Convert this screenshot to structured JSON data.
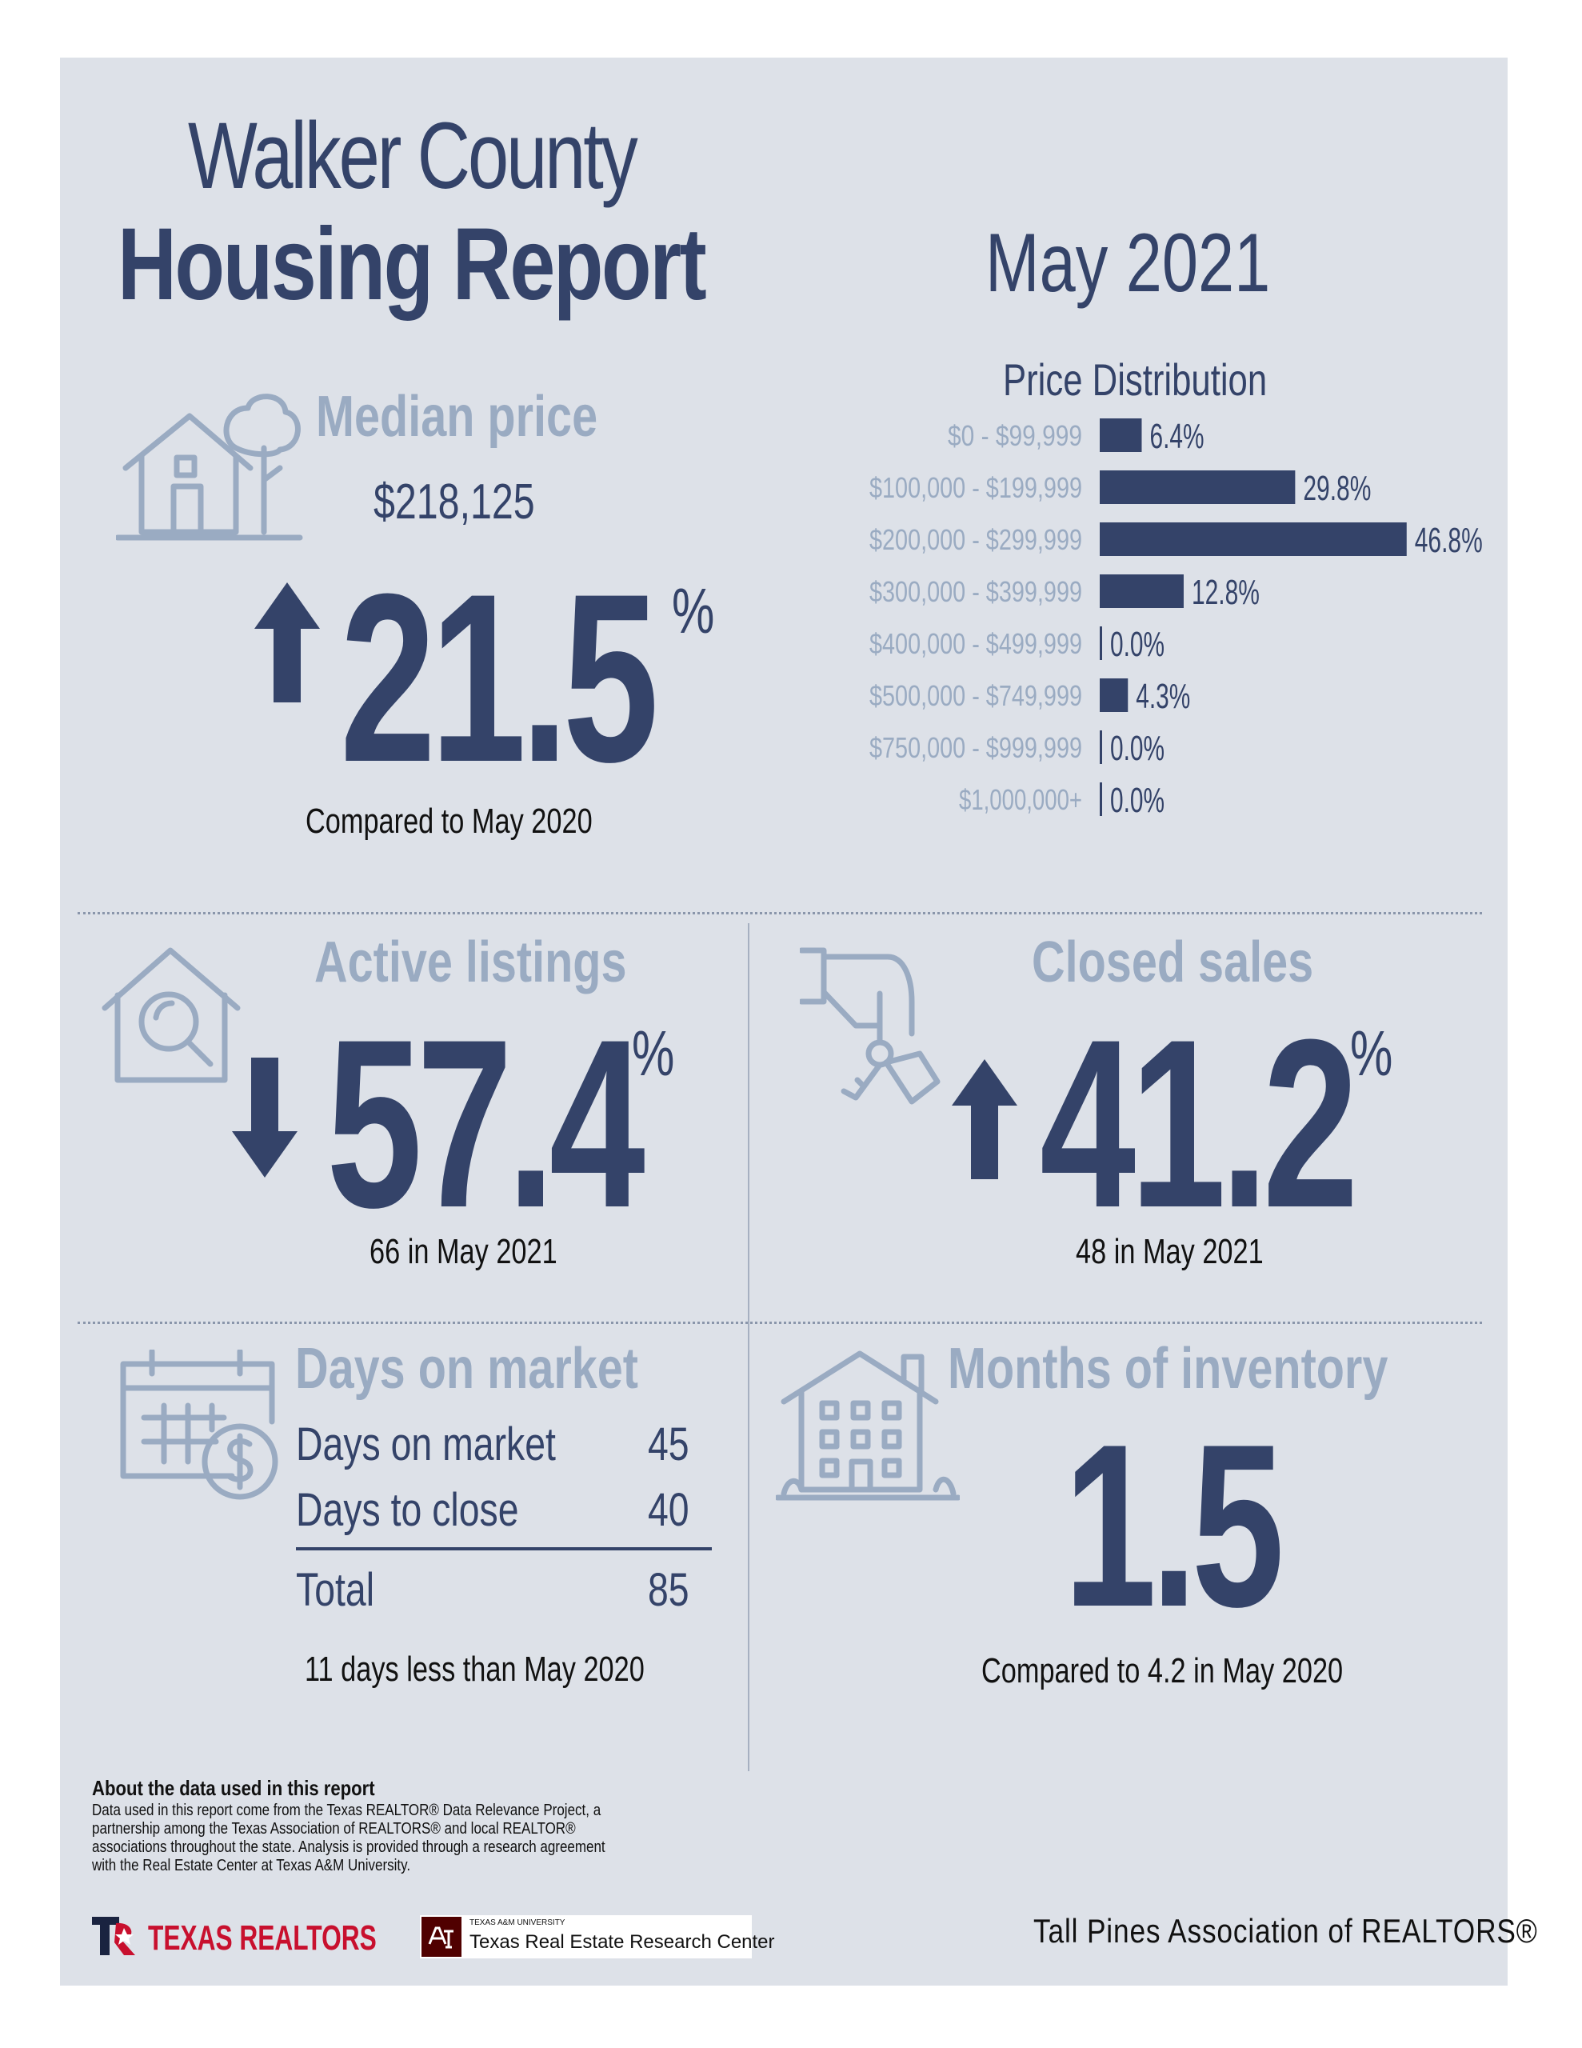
{
  "header": {
    "title_line1": "Walker County",
    "title_line2": "Housing Report",
    "month": "May 2021"
  },
  "median": {
    "label": "Median price",
    "value": "$218,125",
    "change": "21.5",
    "pct": "%",
    "direction": "up",
    "note": "Compared to May 2020"
  },
  "active": {
    "label": "Active listings",
    "change": "57.4",
    "pct": "%",
    "direction": "down",
    "note": "66 in May 2021"
  },
  "closed": {
    "label": "Closed sales",
    "change": "41.2",
    "pct": "%",
    "direction": "up",
    "note": "48 in May 2021"
  },
  "dom": {
    "label": "Days on market",
    "rows": [
      {
        "label": "Days on market",
        "value": "45"
      },
      {
        "label": "Days to close",
        "value": "40"
      }
    ],
    "total_label": "Total",
    "total_value": "85",
    "note": "11 days less than May 2020"
  },
  "inventory": {
    "label": "Months of inventory",
    "value": "1.5",
    "note": "Compared to 4.2 in May 2020"
  },
  "chart_data": {
    "type": "bar",
    "title": "Price Distribution",
    "orientation": "horizontal",
    "categories": [
      "$0 - $99,999",
      "$100,000 - $199,999",
      "$200,000 - $299,999",
      "$300,000 - $399,999",
      "$400,000 - $499,999",
      "$500,000 - $749,999",
      "$750,000 - $999,999",
      "$1,000,000+"
    ],
    "values": [
      6.4,
      29.8,
      46.8,
      12.8,
      0.0,
      4.3,
      0.0,
      0.0
    ],
    "labels": [
      "6.4%",
      "29.8%",
      "46.8%",
      "12.8%",
      "0.0%",
      "4.3%",
      "0.0%",
      "0.0%"
    ],
    "grid": false
  },
  "footer": {
    "about_title": "About the data used in this report",
    "about_text": "Data used in this report come from the Texas REALTOR® Data Relevance Project, a partnership among the Texas Association of REALTORS® and local REALTOR® associations throughout the state. Analysis is provided through a research agreement with the Real Estate Center at Texas A&M University.",
    "logo_tr": "TEXAS REALTORS",
    "logo_tamu_small": "TEXAS A&M UNIVERSITY",
    "logo_tamu": "Texas Real Estate Research Center",
    "association": "Tall Pines Association of REALTORS®"
  },
  "colors": {
    "navy": "#344369",
    "muted": "#9aabc2",
    "panel": "#dde1e8",
    "red": "#c8102e",
    "maroon": "#500000"
  }
}
